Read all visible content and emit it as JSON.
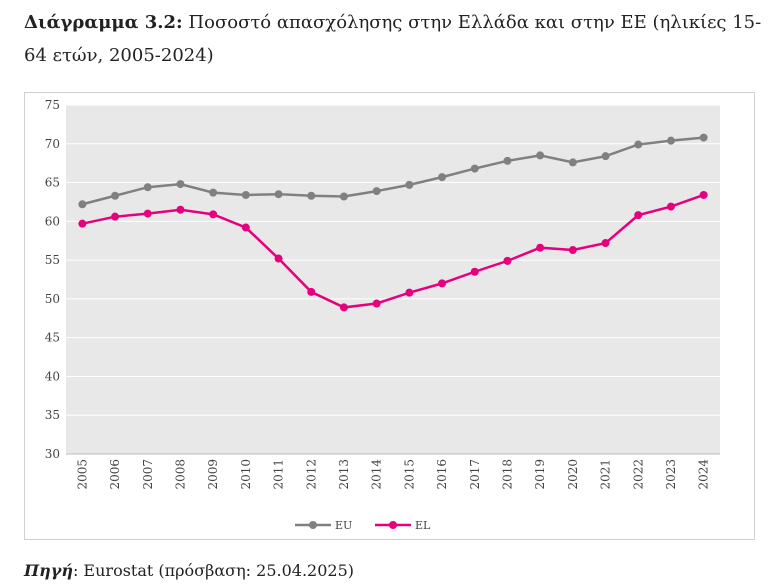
{
  "title": {
    "label": "Διάγραμμα 3.2:",
    "text": "Ποσοστό απασχόλησης στην Ελλάδα και στην ΕΕ (ηλικίες 15-64 ετών, 2005-2024)"
  },
  "source": {
    "label": "Πηγή",
    "text": ": Eurostat (πρόσβαση: 25.04.2025)"
  },
  "chart_data": {
    "type": "line",
    "title": "",
    "xlabel": "",
    "ylabel": "",
    "ylim": [
      30,
      75
    ],
    "yticks": [
      30,
      35,
      40,
      45,
      50,
      55,
      60,
      65,
      70,
      75
    ],
    "grid": "horizontal",
    "legend_position": "bottom",
    "categories": [
      "2005",
      "2006",
      "2007",
      "2008",
      "2009",
      "2010",
      "2011",
      "2012",
      "2013",
      "2014",
      "2015",
      "2016",
      "2017",
      "2018",
      "2019",
      "2020",
      "2021",
      "2022",
      "2023",
      "2024"
    ],
    "series": [
      {
        "name": "EU",
        "color": "#808080",
        "values": [
          62.2,
          63.3,
          64.4,
          64.8,
          63.7,
          63.4,
          63.5,
          63.3,
          63.2,
          63.9,
          64.7,
          65.7,
          66.8,
          67.8,
          68.5,
          67.6,
          68.4,
          69.9,
          70.4,
          70.8
        ]
      },
      {
        "name": "EL",
        "color": "#e6007e",
        "values": [
          59.7,
          60.6,
          61.0,
          61.5,
          60.9,
          59.2,
          55.2,
          50.9,
          48.9,
          49.4,
          50.8,
          52.0,
          53.5,
          54.9,
          56.6,
          56.3,
          57.2,
          60.8,
          61.9,
          63.4
        ]
      }
    ]
  }
}
